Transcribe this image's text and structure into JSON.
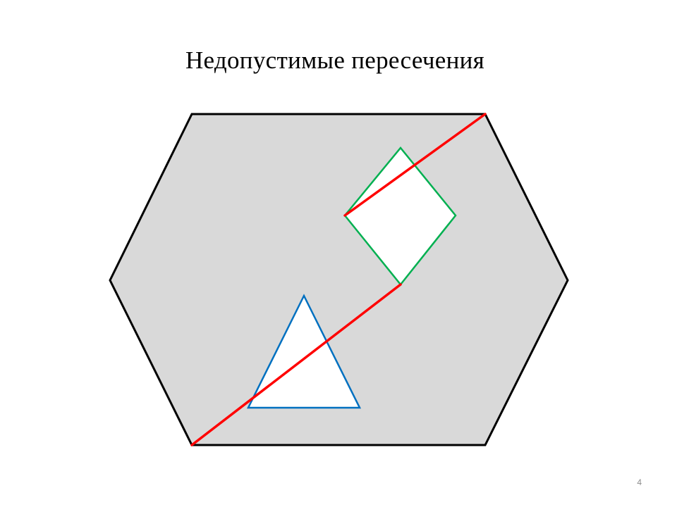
{
  "slide": {
    "title": "Недопустимые пересечения",
    "number": "4"
  },
  "colors": {
    "background": "#ffffff",
    "hexagon_fill": "#d9d9d9",
    "hexagon_stroke": "#000000",
    "diamond_stroke": "#00b050",
    "triangle_stroke": "#0070c0",
    "segment_stroke": "#ff0000",
    "hole_fill": "#ffffff"
  },
  "shapes": [
    {
      "name": "outer-hexagon",
      "kind": "hexagon"
    },
    {
      "name": "green-diamond-hole",
      "kind": "rhombus"
    },
    {
      "name": "blue-triangle-hole",
      "kind": "triangle"
    },
    {
      "name": "red-path",
      "kind": "polyline"
    }
  ]
}
